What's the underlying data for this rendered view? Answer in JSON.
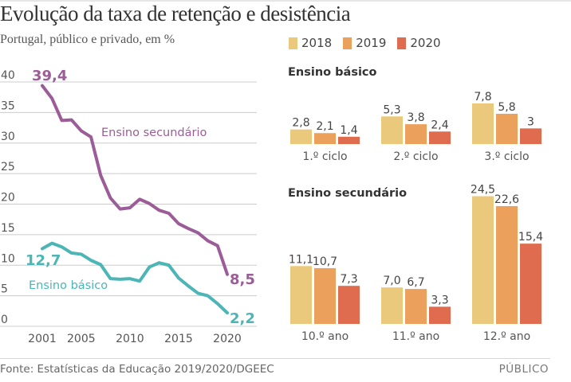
{
  "title": "Evolução da taxa de retenção e desistência",
  "subtitle": "Portugal, público e privado, em %",
  "legend": [
    {
      "label": "2018",
      "color": "#ebc97c"
    },
    {
      "label": "2019",
      "color": "#eba05c"
    },
    {
      "label": "2020",
      "color": "#e06c50"
    }
  ],
  "footer": {
    "source": "Fonte: Estatísticas da Educação 2019/2020/DGEEC",
    "brand": "PÚBLICO"
  },
  "chart_data": [
    {
      "type": "line",
      "title": "Evolução da taxa de retenção e desistência",
      "xlabel": "",
      "ylabel": "%",
      "ylim": [
        0,
        40
      ],
      "yticks": [
        "0",
        "5",
        "10",
        "15",
        "20",
        "25",
        "30",
        "35",
        "40"
      ],
      "xticks": [
        "2001",
        "2005",
        "2010",
        "2015",
        "2020"
      ],
      "grid": true,
      "x": [
        2001,
        2002,
        2003,
        2004,
        2005,
        2006,
        2007,
        2008,
        2009,
        2010,
        2011,
        2012,
        2013,
        2014,
        2015,
        2016,
        2017,
        2018,
        2019,
        2020
      ],
      "series": [
        {
          "name": "Ensino secundário",
          "color": "#9b5c97",
          "values": [
            39.4,
            37.3,
            33.7,
            33.8,
            32.0,
            31.0,
            24.7,
            21.0,
            19.2,
            19.4,
            20.8,
            20.1,
            19.0,
            18.5,
            16.8,
            16.0,
            15.3,
            14.0,
            13.2,
            8.5
          ],
          "start_label": "39,4",
          "end_label": "8,5"
        },
        {
          "name": "Ensino básico",
          "color": "#4cb5b5",
          "values": [
            12.7,
            13.6,
            13.0,
            12.0,
            11.8,
            10.8,
            10.1,
            7.8,
            7.7,
            7.8,
            7.4,
            9.7,
            10.4,
            10.0,
            7.9,
            6.6,
            5.4,
            5.0,
            3.7,
            2.2
          ],
          "start_label": "12,7",
          "end_label": "2,2"
        }
      ]
    },
    {
      "type": "bar",
      "title": "Ensino básico",
      "categories": [
        "1.º ciclo",
        "2.º ciclo",
        "3.º ciclo"
      ],
      "series": [
        {
          "name": "2018",
          "values": [
            2.8,
            5.3,
            7.8
          ],
          "labels": [
            "2,8",
            "5,3",
            "7,8"
          ]
        },
        {
          "name": "2019",
          "values": [
            2.1,
            3.8,
            5.8
          ],
          "labels": [
            "2,1",
            "3,8",
            "5,8"
          ]
        },
        {
          "name": "2020",
          "values": [
            1.4,
            2.4,
            3.0
          ],
          "labels": [
            "1,4",
            "2,4",
            "3"
          ]
        }
      ]
    },
    {
      "type": "bar",
      "title": "Ensino secundário",
      "categories": [
        "10.º ano",
        "11.º ano",
        "12.º ano"
      ],
      "series": [
        {
          "name": "2018",
          "values": [
            11.1,
            7.0,
            24.5
          ],
          "labels": [
            "11,1",
            "7,0",
            "24,5"
          ]
        },
        {
          "name": "2019",
          "values": [
            10.7,
            6.7,
            22.6
          ],
          "labels": [
            "10,7",
            "6,7",
            "22,6"
          ]
        },
        {
          "name": "2020",
          "values": [
            7.3,
            3.3,
            15.4
          ],
          "labels": [
            "7,3",
            "3,3",
            "15,4"
          ]
        }
      ]
    }
  ]
}
